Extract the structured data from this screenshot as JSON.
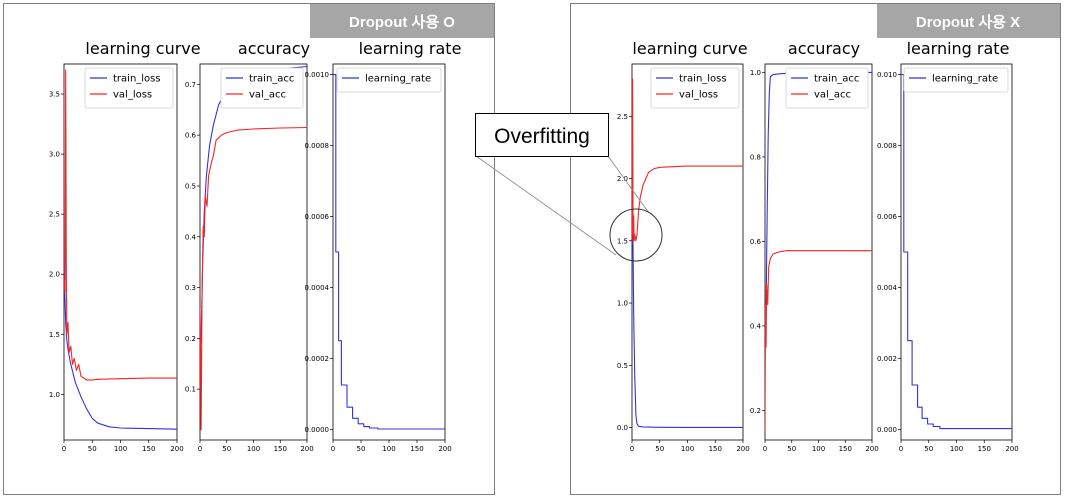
{
  "panels": [
    {
      "badge": "Dropout 사용 O",
      "charts": [
        {
          "type": "line",
          "title": "learning curve",
          "xlim": [
            0,
            200
          ],
          "ylim": [
            0.62,
            3.75
          ],
          "xticks": [
            0,
            50,
            100,
            150,
            200
          ],
          "yticks": [
            1.0,
            1.5,
            2.0,
            2.5,
            3.0,
            3.5
          ],
          "ytick_labels": [
            "1.0",
            "1.5",
            "2.0",
            "2.5",
            "3.0",
            "3.5"
          ],
          "legend": "top-right",
          "series": [
            {
              "name": "train_loss",
              "color": "#3333dd",
              "points": [
                [
                  0,
                  2.15
                ],
                [
                  1,
                  1.9
                ],
                [
                  3,
                  1.6
                ],
                [
                  5,
                  1.45
                ],
                [
                  8,
                  1.35
                ],
                [
                  12,
                  1.25
                ],
                [
                  20,
                  1.1
                ],
                [
                  30,
                  0.98
                ],
                [
                  40,
                  0.88
                ],
                [
                  50,
                  0.8
                ],
                [
                  60,
                  0.76
                ],
                [
                  80,
                  0.73
                ],
                [
                  100,
                  0.72
                ],
                [
                  150,
                  0.715
                ],
                [
                  200,
                  0.71
                ]
              ]
            },
            {
              "name": "val_loss",
              "color": "#ff2222",
              "points": [
                [
                  0,
                  1.95
                ],
                [
                  2,
                  1.85
                ],
                [
                  3,
                  3.7
                ],
                [
                  4,
                  2.1
                ],
                [
                  5,
                  1.5
                ],
                [
                  7,
                  1.6
                ],
                [
                  9,
                  1.35
                ],
                [
                  12,
                  1.4
                ],
                [
                  15,
                  1.25
                ],
                [
                  18,
                  1.3
                ],
                [
                  22,
                  1.2
                ],
                [
                  26,
                  1.25
                ],
                [
                  30,
                  1.15
                ],
                [
                  40,
                  1.12
                ],
                [
                  50,
                  1.12
                ],
                [
                  60,
                  1.125
                ],
                [
                  100,
                  1.13
                ],
                [
                  150,
                  1.135
                ],
                [
                  200,
                  1.135
                ]
              ]
            }
          ]
        },
        {
          "type": "line",
          "title": "accuracy",
          "xlim": [
            0,
            200
          ],
          "ylim": [
            0.0,
            0.74
          ],
          "xticks": [
            0,
            50,
            100,
            150,
            200
          ],
          "yticks": [
            0.1,
            0.2,
            0.3,
            0.4,
            0.5,
            0.6,
            0.7
          ],
          "ytick_labels": [
            "0.1",
            "0.2",
            "0.3",
            "0.4",
            "0.5",
            "0.6",
            "0.7"
          ],
          "legend": "top-right",
          "series": [
            {
              "name": "train_acc",
              "color": "#3333dd",
              "points": [
                [
                  0,
                  0.18
                ],
                [
                  2,
                  0.2
                ],
                [
                  5,
                  0.35
                ],
                [
                  8,
                  0.45
                ],
                [
                  12,
                  0.52
                ],
                [
                  18,
                  0.58
                ],
                [
                  25,
                  0.62
                ],
                [
                  35,
                  0.66
                ],
                [
                  50,
                  0.69
                ],
                [
                  70,
                  0.71
                ],
                [
                  100,
                  0.72
                ],
                [
                  150,
                  0.73
                ],
                [
                  200,
                  0.735
                ]
              ]
            },
            {
              "name": "val_acc",
              "color": "#ff2222",
              "points": [
                [
                  0,
                  0.26
                ],
                [
                  1,
                  0.19
                ],
                [
                  2,
                  0.02
                ],
                [
                  3,
                  0.15
                ],
                [
                  4,
                  0.3
                ],
                [
                  6,
                  0.42
                ],
                [
                  8,
                  0.4
                ],
                [
                  10,
                  0.48
                ],
                [
                  13,
                  0.46
                ],
                [
                  16,
                  0.52
                ],
                [
                  20,
                  0.54
                ],
                [
                  25,
                  0.56
                ],
                [
                  30,
                  0.59
                ],
                [
                  40,
                  0.6
                ],
                [
                  50,
                  0.605
                ],
                [
                  70,
                  0.61
                ],
                [
                  100,
                  0.612
                ],
                [
                  150,
                  0.614
                ],
                [
                  200,
                  0.615
                ]
              ]
            }
          ]
        },
        {
          "type": "line",
          "title": "learning rate",
          "xlim": [
            0,
            200
          ],
          "ylim": [
            -3e-05,
            0.00103
          ],
          "xticks": [
            0,
            50,
            100,
            150,
            200
          ],
          "yticks": [
            0.0,
            0.0002,
            0.0004,
            0.0006,
            0.0008,
            0.001
          ],
          "ytick_labels": [
            "0.0000",
            "0.0002",
            "0.0004",
            "0.0006",
            "0.0008",
            "0.0010"
          ],
          "legend": "top-right",
          "series": [
            {
              "name": "learning_rate",
              "color": "#3333dd",
              "points": [
                [
                  0,
                  0.001
                ],
                [
                  5,
                  0.001
                ],
                [
                  5,
                  0.0005
                ],
                [
                  10,
                  0.0005
                ],
                [
                  10,
                  0.00025
                ],
                [
                  15,
                  0.00025
                ],
                [
                  15,
                  0.000125
                ],
                [
                  25,
                  0.000125
                ],
                [
                  25,
                  6.25e-05
                ],
                [
                  35,
                  6.25e-05
                ],
                [
                  35,
                  3.125e-05
                ],
                [
                  45,
                  3.125e-05
                ],
                [
                  45,
                  1.56e-05
                ],
                [
                  55,
                  1.56e-05
                ],
                [
                  55,
                  7.8e-06
                ],
                [
                  65,
                  7.8e-06
                ],
                [
                  65,
                  3.9e-06
                ],
                [
                  80,
                  3.9e-06
                ],
                [
                  80,
                  1e-06
                ],
                [
                  200,
                  1e-06
                ]
              ]
            }
          ]
        }
      ]
    },
    {
      "badge": "Dropout 사용 X",
      "charts": [
        {
          "type": "line",
          "title": "learning curve",
          "xlim": [
            0,
            200
          ],
          "ylim": [
            -0.1,
            2.92
          ],
          "xticks": [
            0,
            50,
            100,
            150,
            200
          ],
          "yticks": [
            0.0,
            0.5,
            1.0,
            1.5,
            2.0,
            2.5
          ],
          "ytick_labels": [
            "0.0",
            "0.5",
            "1.0",
            "1.5",
            "2.0",
            "2.5"
          ],
          "legend": "top-right",
          "series": [
            {
              "name": "train_loss",
              "color": "#3333dd",
              "points": [
                [
                  0,
                  1.55
                ],
                [
                  1,
                  1.75
                ],
                [
                  2,
                  1.4
                ],
                [
                  3,
                  0.9
                ],
                [
                  5,
                  0.4
                ],
                [
                  7,
                  0.1
                ],
                [
                  9,
                  0.03
                ],
                [
                  12,
                  0.01
                ],
                [
                  20,
                  0.005
                ],
                [
                  50,
                  0.002
                ],
                [
                  100,
                  0.001
                ],
                [
                  200,
                  0.001
                ]
              ]
            },
            {
              "name": "val_loss",
              "color": "#ff2222",
              "points": [
                [
                  0,
                  1.55
                ],
                [
                  1,
                  2.8
                ],
                [
                  2,
                  1.5
                ],
                [
                  3,
                  1.7
                ],
                [
                  4,
                  1.5
                ],
                [
                  5,
                  1.55
                ],
                [
                  7,
                  1.5
                ],
                [
                  9,
                  1.55
                ],
                [
                  12,
                  1.75
                ],
                [
                  15,
                  1.85
                ],
                [
                  20,
                  1.95
                ],
                [
                  25,
                  2.0
                ],
                [
                  30,
                  2.05
                ],
                [
                  40,
                  2.08
                ],
                [
                  50,
                  2.09
                ],
                [
                  75,
                  2.095
                ],
                [
                  100,
                  2.1
                ],
                [
                  150,
                  2.1
                ],
                [
                  200,
                  2.1
                ]
              ]
            }
          ]
        },
        {
          "type": "line",
          "title": "accuracy",
          "xlim": [
            0,
            200
          ],
          "ylim": [
            0.13,
            1.02
          ],
          "xticks": [
            0,
            50,
            100,
            150,
            200
          ],
          "yticks": [
            0.2,
            0.4,
            0.6,
            0.8,
            1.0
          ],
          "ytick_labels": [
            "0.2",
            "0.4",
            "0.6",
            "0.8",
            "1.0"
          ],
          "legend": "top-right",
          "series": [
            {
              "name": "train_acc",
              "color": "#3333dd",
              "points": [
                [
                  0,
                  0.33
                ],
                [
                  2,
                  0.45
                ],
                [
                  4,
                  0.65
                ],
                [
                  6,
                  0.85
                ],
                [
                  8,
                  0.95
                ],
                [
                  10,
                  0.99
                ],
                [
                  15,
                  0.995
                ],
                [
                  30,
                  0.997
                ],
                [
                  60,
                  0.999
                ],
                [
                  100,
                  1.0
                ],
                [
                  200,
                  1.0
                ]
              ]
            },
            {
              "name": "val_acc",
              "color": "#ff2222",
              "points": [
                [
                  0,
                  0.15
                ],
                [
                  1,
                  0.45
                ],
                [
                  2,
                  0.35
                ],
                [
                  3,
                  0.5
                ],
                [
                  5,
                  0.45
                ],
                [
                  7,
                  0.54
                ],
                [
                  10,
                  0.56
                ],
                [
                  15,
                  0.57
                ],
                [
                  25,
                  0.575
                ],
                [
                  40,
                  0.578
                ],
                [
                  70,
                  0.578
                ],
                [
                  100,
                  0.578
                ],
                [
                  150,
                  0.578
                ],
                [
                  200,
                  0.578
                ]
              ]
            }
          ]
        },
        {
          "type": "line",
          "title": "learning rate",
          "xlim": [
            0,
            200
          ],
          "ylim": [
            -0.0003,
            0.0103
          ],
          "xticks": [
            0,
            50,
            100,
            150,
            200
          ],
          "yticks": [
            0.0,
            0.002,
            0.004,
            0.006,
            0.008,
            0.01
          ],
          "ytick_labels": [
            "0.000",
            "0.002",
            "0.004",
            "0.006",
            "0.008",
            "0.010"
          ],
          "legend": "top-right",
          "series": [
            {
              "name": "learning_rate",
              "color": "#3333dd",
              "points": [
                [
                  0,
                  0.01
                ],
                [
                  5,
                  0.01
                ],
                [
                  5,
                  0.005
                ],
                [
                  12,
                  0.005
                ],
                [
                  12,
                  0.0025
                ],
                [
                  20,
                  0.0025
                ],
                [
                  20,
                  0.00125
                ],
                [
                  30,
                  0.00125
                ],
                [
                  30,
                  0.000625
                ],
                [
                  38,
                  0.000625
                ],
                [
                  38,
                  0.0003125
                ],
                [
                  48,
                  0.0003125
                ],
                [
                  48,
                  0.00015
                ],
                [
                  58,
                  0.00015
                ],
                [
                  58,
                  8e-05
                ],
                [
                  70,
                  8e-05
                ],
                [
                  70,
                  2e-05
                ],
                [
                  200,
                  2e-05
                ]
              ]
            }
          ]
        }
      ]
    }
  ],
  "callout": {
    "text": "Overfitting"
  }
}
